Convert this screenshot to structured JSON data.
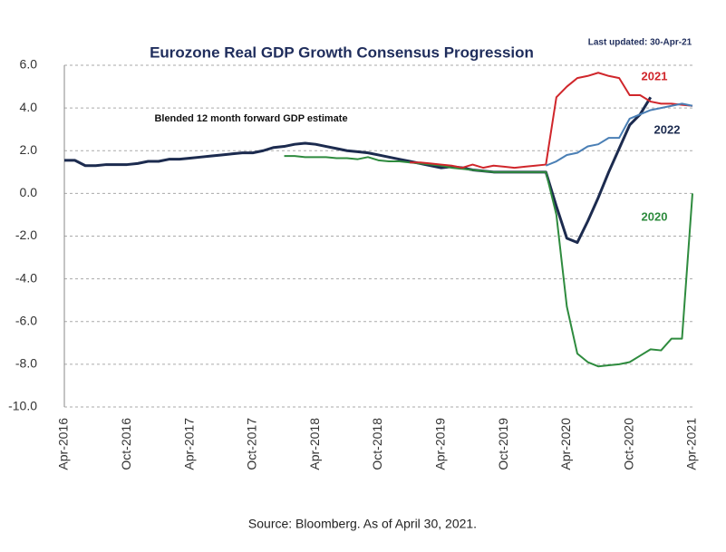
{
  "chart_data": {
    "type": "line",
    "title": "Eurozone Real GDP Growth Consensus Progression",
    "subtitle": "Last updated:  30-Apr-21",
    "caption": "Source: Bloomberg. As of April 30, 2021.",
    "categories": [
      "Apr-2016",
      null,
      null,
      null,
      null,
      null,
      "Oct-2016",
      null,
      null,
      null,
      null,
      null,
      "Apr-2017",
      null,
      null,
      null,
      null,
      null,
      "Oct-2017",
      null,
      null,
      null,
      null,
      null,
      "Apr-2018",
      null,
      null,
      null,
      null,
      null,
      "Oct-2018",
      null,
      null,
      null,
      null,
      null,
      "Apr-2019",
      null,
      null,
      null,
      null,
      null,
      "Oct-2019",
      null,
      null,
      null,
      null,
      null,
      "Apr-2020",
      null,
      null,
      null,
      null,
      null,
      "Oct-2020",
      null,
      null,
      null,
      null,
      null,
      "Apr-2021"
    ],
    "series": [
      {
        "name": "Blended 12 month forward GDP estimate",
        "color": "#1c2b4f",
        "values": [
          1.55,
          1.55,
          1.3,
          1.3,
          1.35,
          1.35,
          1.35,
          1.4,
          1.5,
          1.5,
          1.6,
          1.6,
          1.65,
          1.7,
          1.75,
          1.8,
          1.85,
          1.9,
          1.9,
          2.0,
          2.15,
          2.2,
          2.3,
          2.35,
          2.3,
          2.2,
          2.1,
          2.0,
          1.95,
          1.9,
          1.8,
          1.7,
          1.6,
          1.5,
          1.4,
          1.3,
          1.2,
          1.25,
          1.2,
          1.1,
          1.05,
          1.0,
          1.0,
          1.0,
          1.0,
          1.0,
          1.0,
          -0.6,
          -2.1,
          -2.3,
          -1.3,
          -0.2,
          1.0,
          2.1,
          3.2,
          3.7,
          4.5,
          null,
          null,
          null,
          null
        ]
      },
      {
        "name": "2020",
        "color": "#2e8b3e",
        "values": [
          null,
          null,
          null,
          null,
          null,
          null,
          null,
          null,
          null,
          null,
          null,
          null,
          null,
          null,
          null,
          null,
          null,
          null,
          null,
          null,
          null,
          1.75,
          1.75,
          1.7,
          1.7,
          1.7,
          1.65,
          1.65,
          1.6,
          1.7,
          1.55,
          1.5,
          1.5,
          1.45,
          1.4,
          1.35,
          1.3,
          1.2,
          1.15,
          1.1,
          1.05,
          1.0,
          1.0,
          1.0,
          1.0,
          1.0,
          1.0,
          -1.0,
          -5.3,
          -7.5,
          -7.9,
          -8.1,
          -8.05,
          -8.0,
          -7.9,
          -7.6,
          -7.3,
          -7.35,
          -6.8,
          -6.8,
          0.0
        ]
      },
      {
        "name": "2021",
        "color": "#d0262b",
        "values": [
          null,
          null,
          null,
          null,
          null,
          null,
          null,
          null,
          null,
          null,
          null,
          null,
          null,
          null,
          null,
          null,
          null,
          null,
          null,
          null,
          null,
          null,
          null,
          null,
          null,
          null,
          null,
          null,
          null,
          null,
          null,
          null,
          null,
          1.45,
          1.45,
          1.4,
          1.35,
          1.3,
          1.2,
          1.35,
          1.2,
          1.3,
          1.25,
          1.2,
          1.25,
          1.3,
          1.35,
          4.5,
          5.0,
          5.4,
          5.5,
          5.65,
          5.5,
          5.4,
          4.6,
          4.6,
          4.3,
          4.2,
          4.2,
          4.15,
          4.1
        ]
      },
      {
        "name": "2022",
        "color": "#4a7fb5",
        "values": [
          null,
          null,
          null,
          null,
          null,
          null,
          null,
          null,
          null,
          null,
          null,
          null,
          null,
          null,
          null,
          null,
          null,
          null,
          null,
          null,
          null,
          null,
          null,
          null,
          null,
          null,
          null,
          null,
          null,
          null,
          null,
          null,
          null,
          null,
          null,
          null,
          null,
          null,
          null,
          null,
          null,
          null,
          null,
          null,
          null,
          null,
          1.3,
          1.5,
          1.8,
          1.9,
          2.2,
          2.3,
          2.6,
          2.6,
          3.5,
          3.7,
          3.9,
          4.0,
          4.1,
          4.2,
          4.1
        ]
      }
    ],
    "ylim": [
      -10,
      6
    ],
    "yticks": [
      {
        "value": -10,
        "label": "-10.0"
      },
      {
        "value": -8,
        "label": "-8.0"
      },
      {
        "value": -6,
        "label": "-6.0"
      },
      {
        "value": -4,
        "label": "-4.0"
      },
      {
        "value": -2,
        "label": "-2.0"
      },
      {
        "value": 0,
        "label": "0.0"
      },
      {
        "value": 2,
        "label": "2.0"
      },
      {
        "value": 4,
        "label": "4.0"
      },
      {
        "value": 6,
        "label": "6.0"
      }
    ],
    "grid": true
  }
}
